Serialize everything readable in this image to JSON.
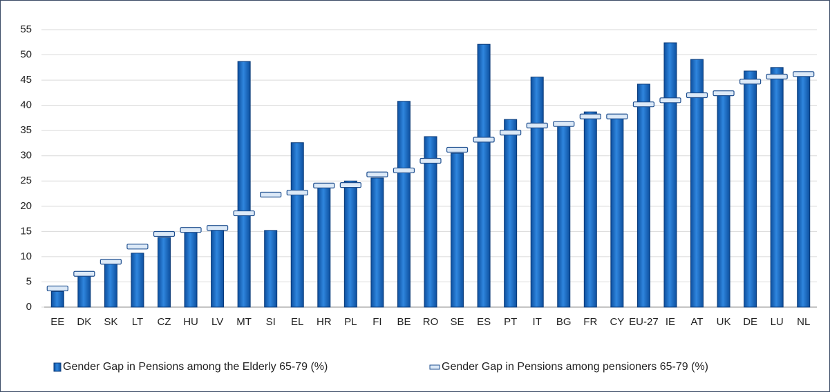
{
  "chart_data": {
    "type": "bar",
    "categories": [
      "EE",
      "DK",
      "SK",
      "LT",
      "CZ",
      "HU",
      "LV",
      "MT",
      "SI",
      "EL",
      "HR",
      "PL",
      "FI",
      "BE",
      "RO",
      "SE",
      "ES",
      "PT",
      "IT",
      "BG",
      "FR",
      "CY",
      "EU-27",
      "IE",
      "AT",
      "UK",
      "DE",
      "LU",
      "NL"
    ],
    "series": [
      {
        "name": "Gender Gap in Pensions among the Elderly 65-79 (%)",
        "color": "#1f6fc5",
        "kind": "bar",
        "values": [
          3.1,
          6.2,
          8.8,
          10.7,
          13.8,
          14.8,
          15.3,
          48.7,
          15.2,
          32.6,
          23.7,
          25.0,
          25.6,
          40.8,
          33.8,
          30.5,
          52.1,
          37.2,
          45.6,
          36.1,
          38.7,
          37.9,
          44.2,
          52.4,
          49.1,
          42.1,
          46.8,
          47.5,
          45.7
        ]
      },
      {
        "name": "Gender Gap in Pensions  among  pensioners 65-79 (%)",
        "color": "#dce9f7",
        "kind": "marker",
        "values": [
          3.7,
          6.6,
          9.0,
          12.0,
          14.5,
          15.3,
          15.7,
          18.6,
          22.3,
          22.7,
          24.1,
          24.2,
          26.3,
          27.1,
          29.0,
          31.2,
          33.2,
          34.6,
          36.0,
          36.3,
          37.8,
          37.8,
          40.2,
          41.0,
          42.0,
          42.4,
          44.7,
          45.7,
          46.2
        ]
      }
    ],
    "ylim": [
      0,
      55
    ],
    "yticks": [
      0,
      5,
      10,
      15,
      20,
      25,
      30,
      35,
      40,
      45,
      50,
      55
    ],
    "grid": true
  }
}
